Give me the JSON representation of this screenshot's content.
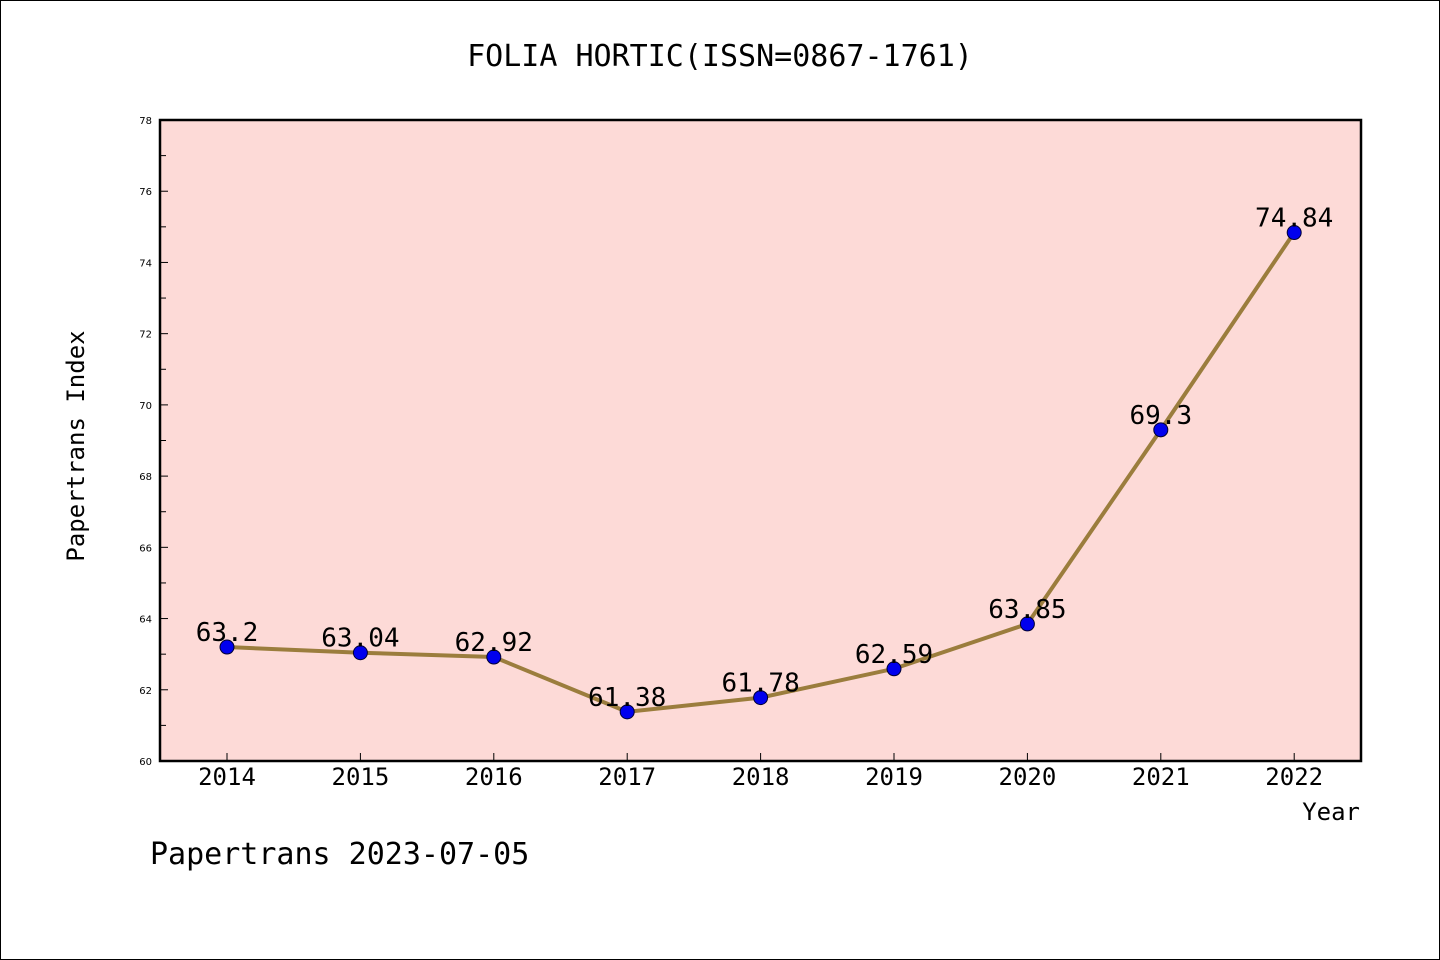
{
  "chart_data": {
    "type": "line",
    "title": "FOLIA HORTIC(ISSN=0867-1761)",
    "xlabel": "Year",
    "ylabel": "Papertrans Index",
    "categories": [
      "2014",
      "2015",
      "2016",
      "2017",
      "2018",
      "2019",
      "2020",
      "2021",
      "2022"
    ],
    "values": [
      63.2,
      63.04,
      62.92,
      61.38,
      61.78,
      62.59,
      63.85,
      69.3,
      74.84
    ],
    "data_labels": [
      "63.2",
      "63.04",
      "62.92",
      "61.38",
      "61.78",
      "62.59",
      "63.85",
      "69.3",
      "74.84"
    ],
    "ylim": [
      60,
      78
    ],
    "y_ticks": [
      "60",
      "62",
      "64",
      "66",
      "68",
      "70",
      "72",
      "74",
      "76",
      "78"
    ],
    "grid": false,
    "legend": "none",
    "footer": "Papertrans 2023-07-05",
    "colors": {
      "plot_background": "#fddad7",
      "line": "#9b7d3d",
      "marker": "#0000ee",
      "axis": "#000000"
    }
  }
}
